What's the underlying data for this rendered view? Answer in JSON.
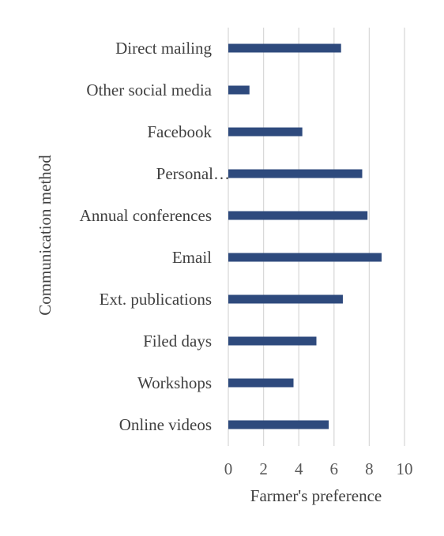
{
  "chart_data": {
    "type": "bar",
    "orientation": "horizontal",
    "categories": [
      "Online videos",
      "Workshops",
      "Filed days",
      "Ext. publications",
      "Email",
      "Annual conferences",
      "Personal…",
      "Facebook",
      "Other social media",
      "Direct mailing"
    ],
    "values": [
      5.7,
      3.7,
      5.0,
      6.5,
      8.7,
      7.9,
      7.6,
      4.2,
      1.2,
      6.4
    ],
    "xlabel": "Farmer's preference",
    "ylabel": "Communication method",
    "xlim": [
      0,
      10
    ],
    "xticks": [
      "0",
      "2",
      "4",
      "6",
      "8",
      "10"
    ],
    "grid": "vertical",
    "bar_color": "#2e4a7d",
    "grid_color": "#d9d9d9"
  }
}
